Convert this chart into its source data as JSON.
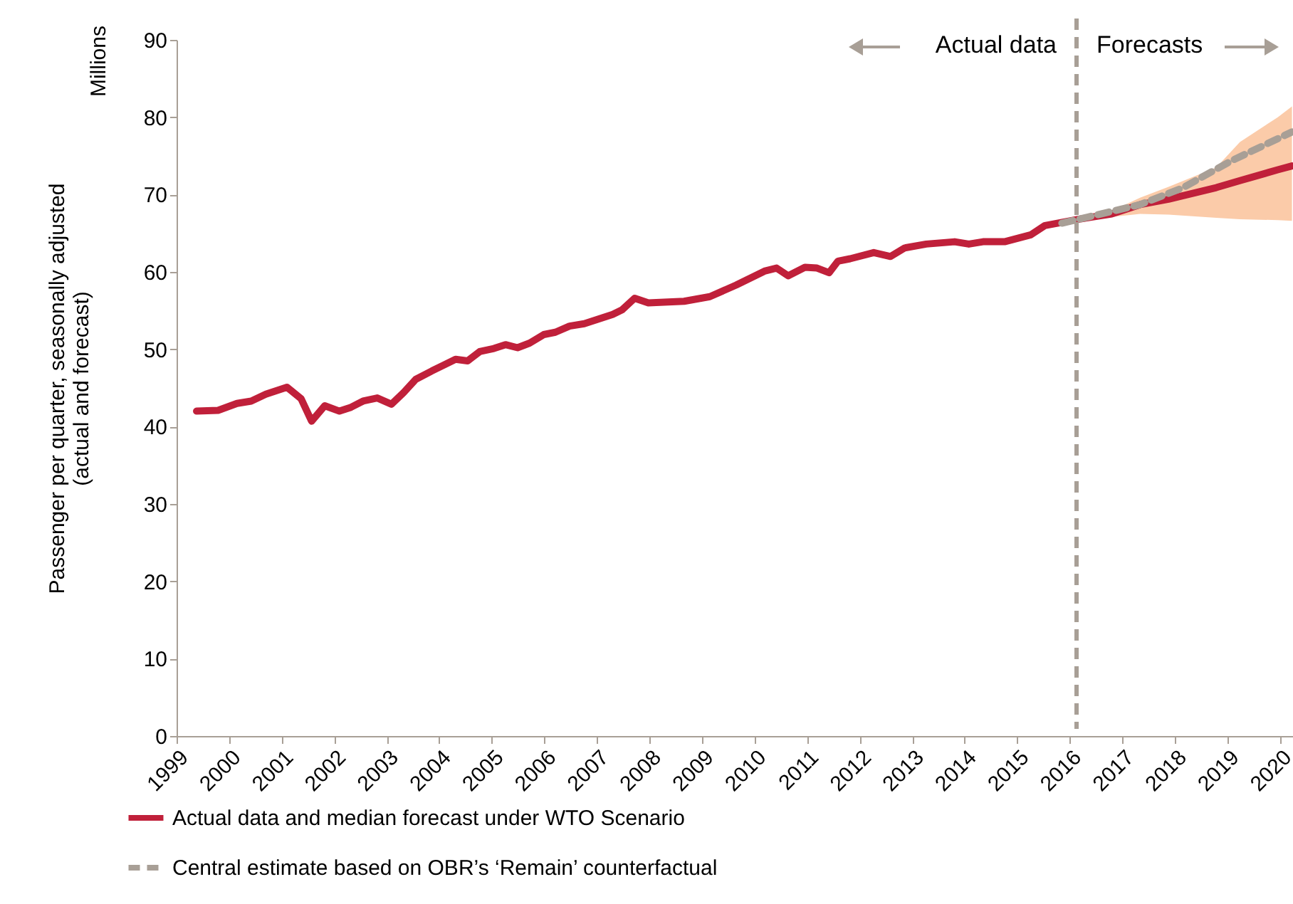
{
  "chart_data": {
    "type": "line",
    "ylabel": "Passenger per quarter, seasonally adjusted\n(actual and forecast)",
    "xlim": [
      1999,
      2020.25
    ],
    "xticks": [
      1999,
      2000,
      2001,
      2002,
      2003,
      2004,
      2005,
      2006,
      2007,
      2008,
      2009,
      2010,
      2011,
      2012,
      2013,
      2014,
      2015,
      2016,
      2017,
      2018,
      2019,
      2020
    ],
    "ylim": [
      0,
      90
    ],
    "yticks": [
      0,
      10,
      20,
      30,
      40,
      50,
      60,
      70,
      80,
      90
    ],
    "grid": false,
    "legend": "bottom",
    "marker": "none",
    "annotations": [
      "Millions",
      "Actual data",
      "Forecasts"
    ],
    "ref_lines": [
      {
        "axis": "x",
        "value": 2016.13,
        "color": "#a89f96",
        "line_style": "dashed"
      }
    ],
    "series": [
      {
        "name": "Actual data and median forecast under WTO Scenario",
        "color": "#c0203a",
        "line_style": "solid",
        "x": [
          1999.38,
          1999.79,
          2000.15,
          2000.42,
          2000.7,
          2001.1,
          2001.37,
          2001.57,
          2001.82,
          2002.1,
          2002.32,
          2002.55,
          2002.82,
          2003.09,
          2003.32,
          2003.55,
          2003.86,
          2004.31,
          2004.54,
          2004.77,
          2005.04,
          2005.26,
          2005.49,
          2005.72,
          2005.99,
          2006.21,
          2006.48,
          2006.76,
          2007.03,
          2007.3,
          2007.48,
          2007.72,
          2007.98,
          2008.66,
          2009.15,
          2009.65,
          2010.19,
          2010.42,
          2010.64,
          2010.96,
          2011.19,
          2011.42,
          2011.59,
          2011.82,
          2012.27,
          2012.59,
          2012.86,
          2013.27,
          2013.81,
          2014.08,
          2014.35,
          2014.76,
          2015.26,
          2015.53,
          2016.16,
          2016.8,
          2017.34,
          2017.88,
          2018.79,
          2019.24,
          2019.96,
          2020.23
        ],
        "values": [
          42.0,
          42.1,
          43.0,
          43.3,
          44.2,
          45.1,
          43.6,
          40.7,
          42.7,
          42.0,
          42.5,
          43.3,
          43.7,
          42.9,
          44.4,
          46.1,
          47.2,
          48.7,
          48.5,
          49.7,
          50.1,
          50.6,
          50.2,
          50.8,
          51.9,
          52.2,
          53.0,
          53.3,
          53.9,
          54.5,
          55.1,
          56.6,
          56.0,
          56.2,
          56.8,
          58.3,
          60.1,
          60.5,
          59.5,
          60.6,
          60.5,
          59.9,
          61.4,
          61.7,
          62.5,
          62.0,
          63.1,
          63.6,
          63.9,
          63.6,
          63.9,
          63.9,
          64.8,
          66.0,
          66.8,
          67.5,
          68.7,
          69.4,
          70.9,
          71.8,
          73.2,
          73.7
        ],
        "lower": [
          null,
          null,
          null,
          null,
          null,
          null,
          null,
          null,
          null,
          null,
          null,
          null,
          null,
          null,
          null,
          null,
          null,
          null,
          null,
          null,
          null,
          null,
          null,
          null,
          null,
          null,
          null,
          null,
          null,
          null,
          null,
          null,
          null,
          null,
          null,
          null,
          null,
          null,
          null,
          null,
          null,
          null,
          null,
          null,
          null,
          null,
          null,
          null,
          null,
          null,
          null,
          null,
          null,
          null,
          66.8,
          67.1,
          67.5,
          67.4,
          67.0,
          66.8,
          66.7,
          66.6
        ],
        "upper": [
          null,
          null,
          null,
          null,
          null,
          null,
          null,
          null,
          null,
          null,
          null,
          null,
          null,
          null,
          null,
          null,
          null,
          null,
          null,
          null,
          null,
          null,
          null,
          null,
          null,
          null,
          null,
          null,
          null,
          null,
          null,
          null,
          null,
          null,
          null,
          null,
          null,
          null,
          null,
          null,
          null,
          null,
          null,
          null,
          null,
          null,
          null,
          null,
          null,
          null,
          null,
          null,
          null,
          null,
          66.8,
          67.9,
          69.6,
          71.0,
          73.5,
          76.8,
          80.0,
          81.4
        ]
      },
      {
        "name": "Central estimate based on OBR’s ‘Remain’ counterfactual",
        "color": "#a89f96",
        "line_style": "dashed",
        "x": [
          2015.85,
          2017.34,
          2018.16,
          2019.06,
          2020.23
        ],
        "values": [
          66.3,
          68.7,
          70.9,
          74.3,
          78.1
        ]
      }
    ]
  }
}
